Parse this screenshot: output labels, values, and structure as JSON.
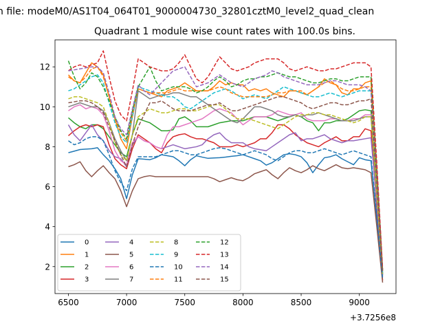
{
  "suptitle": "n file: modeM0/AS1T04_064T01_9000004730_32801cztM0_level2_quad_clean",
  "chart_data": {
    "type": "line",
    "title": "Quadrant 1 module wise count rates with 100.0s bins.",
    "xlabel": "",
    "ylabel": "",
    "x_offset_label": "+3.7256e8",
    "xlim": [
      6385,
      9315
    ],
    "ylim": [
      0.65,
      13.35
    ],
    "xticks": [
      6500,
      7000,
      7500,
      8000,
      8500,
      9000
    ],
    "yticks": [
      2,
      4,
      6,
      8,
      10,
      12
    ],
    "grid": false,
    "legend_position": "lower-left",
    "x": [
      6500,
      6550,
      6600,
      6650,
      6700,
      6750,
      6800,
      6850,
      6900,
      6950,
      7000,
      7050,
      7100,
      7150,
      7200,
      7250,
      7300,
      7350,
      7400,
      7450,
      7500,
      7550,
      7600,
      7650,
      7700,
      7750,
      7800,
      7850,
      7900,
      7950,
      8000,
      8050,
      8100,
      8150,
      8200,
      8250,
      8300,
      8350,
      8400,
      8450,
      8500,
      8550,
      8600,
      8650,
      8700,
      8750,
      8800,
      8850,
      8900,
      8950,
      9000,
      9050,
      9100,
      9150,
      9200
    ],
    "series": [
      {
        "name": "0",
        "color": "#1f77b4",
        "dash": "solid",
        "values": [
          7.7,
          7.78,
          7.86,
          7.88,
          7.9,
          7.95,
          7.6,
          7.3,
          6.9,
          6.4,
          5.4,
          6.6,
          7.4,
          7.38,
          7.35,
          7.45,
          7.6,
          7.55,
          7.5,
          7.3,
          7.05,
          7.35,
          7.55,
          7.48,
          7.42,
          7.44,
          7.45,
          7.48,
          7.52,
          7.55,
          7.6,
          7.5,
          7.4,
          7.3,
          7.08,
          7.2,
          7.4,
          7.6,
          7.65,
          7.6,
          7.5,
          7.2,
          6.7,
          7.1,
          7.45,
          7.5,
          7.6,
          7.4,
          7.25,
          7.1,
          7.45,
          7.35,
          7.3,
          4.4,
          1.6
        ]
      },
      {
        "name": "1",
        "color": "#ff7f0e",
        "dash": "solid",
        "values": [
          11.6,
          11.3,
          11.2,
          11.7,
          12.2,
          12.0,
          11.6,
          10.5,
          9.4,
          8.4,
          7.9,
          9.5,
          10.9,
          10.8,
          10.7,
          10.6,
          10.5,
          10.8,
          10.9,
          11.0,
          11.2,
          11.0,
          10.8,
          10.8,
          10.8,
          11.0,
          11.3,
          11.1,
          11.2,
          11.1,
          11.1,
          10.8,
          10.9,
          10.8,
          10.9,
          10.7,
          10.6,
          10.5,
          10.8,
          10.8,
          10.7,
          10.6,
          10.8,
          11.0,
          11.4,
          11.2,
          11.1,
          10.7,
          10.6,
          10.9,
          10.9,
          11.2,
          11.3,
          6.8,
          1.8
        ]
      },
      {
        "name": "2",
        "color": "#2ca02c",
        "dash": "solid",
        "values": [
          9.45,
          9.2,
          9.0,
          8.9,
          9.1,
          9.1,
          8.9,
          8.5,
          8.1,
          7.7,
          7.5,
          8.6,
          9.4,
          9.3,
          9.2,
          9.0,
          8.8,
          8.8,
          8.85,
          9.4,
          9.5,
          9.3,
          9.0,
          9.0,
          9.0,
          9.1,
          9.2,
          9.25,
          9.3,
          9.3,
          9.3,
          9.4,
          9.5,
          9.5,
          9.5,
          9.4,
          9.3,
          9.4,
          9.5,
          9.6,
          9.5,
          9.3,
          9.2,
          8.8,
          9.2,
          9.2,
          9.3,
          9.3,
          9.4,
          9.6,
          9.8,
          9.85,
          9.8,
          5.9,
          1.6
        ]
      },
      {
        "name": "3",
        "color": "#d62728",
        "dash": "solid",
        "values": [
          8.55,
          8.8,
          9.0,
          9.1,
          9.0,
          9.1,
          9.0,
          8.1,
          7.4,
          7.1,
          6.9,
          7.9,
          8.6,
          8.4,
          8.2,
          7.9,
          7.7,
          8.2,
          8.5,
          8.6,
          8.65,
          8.5,
          8.4,
          8.4,
          8.3,
          8.2,
          8.0,
          8.0,
          8.0,
          8.1,
          8.0,
          8.1,
          8.2,
          8.4,
          8.4,
          8.7,
          9.1,
          9.1,
          8.9,
          8.6,
          8.4,
          8.2,
          8.1,
          8.0,
          8.2,
          8.35,
          8.5,
          8.3,
          8.3,
          8.5,
          8.5,
          8.9,
          8.8,
          5.0,
          1.3
        ]
      },
      {
        "name": "4",
        "color": "#9467bd",
        "dash": "solid",
        "values": [
          9.1,
          8.6,
          8.3,
          8.7,
          9.1,
          8.6,
          8.3,
          7.8,
          7.5,
          7.4,
          7.0,
          8.1,
          8.5,
          8.3,
          8.2,
          8.0,
          7.9,
          8.0,
          8.1,
          8.0,
          7.9,
          7.95,
          8.0,
          8.1,
          8.4,
          8.6,
          8.7,
          8.4,
          8.2,
          8.2,
          8.2,
          8.0,
          7.9,
          7.85,
          7.8,
          8.0,
          8.2,
          8.4,
          8.6,
          8.7,
          8.3,
          8.4,
          8.4,
          8.5,
          8.6,
          8.4,
          8.3,
          8.2,
          8.3,
          8.3,
          8.35,
          8.4,
          8.45,
          5.2,
          1.5
        ]
      },
      {
        "name": "5",
        "color": "#8c564b",
        "dash": "solid",
        "values": [
          7.0,
          7.1,
          7.25,
          6.8,
          6.5,
          6.8,
          7.05,
          6.7,
          6.4,
          5.8,
          5.0,
          5.8,
          6.4,
          6.5,
          6.55,
          6.5,
          6.5,
          6.5,
          6.5,
          6.5,
          6.5,
          6.5,
          6.5,
          6.5,
          6.5,
          6.4,
          6.25,
          6.35,
          6.45,
          6.35,
          6.3,
          6.45,
          6.65,
          6.75,
          6.85,
          6.6,
          6.4,
          6.7,
          6.95,
          6.8,
          6.7,
          6.85,
          7.05,
          6.9,
          6.8,
          6.95,
          7.1,
          6.95,
          6.9,
          6.95,
          6.9,
          6.85,
          6.7,
          4.0,
          1.2
        ]
      },
      {
        "name": "6",
        "color": "#e377c2",
        "dash": "solid",
        "values": [
          9.8,
          10.0,
          10.1,
          9.9,
          10.0,
          9.9,
          9.6,
          8.8,
          7.8,
          7.3,
          7.1,
          8.2,
          8.5,
          8.3,
          8.2,
          8.0,
          7.9,
          8.6,
          9.0,
          9.0,
          9.1,
          9.2,
          9.3,
          9.4,
          9.6,
          9.8,
          9.9,
          9.8,
          9.7,
          9.4,
          9.1,
          9.3,
          9.5,
          9.5,
          9.5,
          9.6,
          9.8,
          9.7,
          9.6,
          9.6,
          9.7,
          9.4,
          9.3,
          9.3,
          9.3,
          9.4,
          9.4,
          9.3,
          9.3,
          9.4,
          9.4,
          9.6,
          9.6,
          5.6,
          1.6
        ]
      },
      {
        "name": "7",
        "color": "#7f7f7f",
        "dash": "solid",
        "values": [
          10.0,
          10.1,
          10.2,
          10.1,
          10.0,
          10.0,
          9.8,
          9.2,
          8.4,
          7.8,
          7.3,
          8.6,
          10.8,
          10.6,
          10.4,
          10.5,
          10.6,
          10.6,
          10.7,
          10.7,
          10.6,
          10.5,
          10.5,
          10.3,
          10.1,
          9.9,
          9.7,
          9.5,
          9.3,
          9.2,
          9.4,
          9.7,
          10.0,
          10.0,
          9.9,
          9.8,
          9.6,
          9.5,
          9.5,
          9.6,
          9.5,
          9.6,
          9.6,
          9.7,
          9.6,
          9.5,
          9.4,
          9.3,
          9.3,
          9.3,
          9.4,
          9.5,
          9.5,
          5.7,
          1.7
        ]
      },
      {
        "name": "8",
        "color": "#bcbd22",
        "dash": "dashed",
        "values": [
          10.4,
          10.5,
          10.5,
          10.4,
          10.3,
          10.2,
          10.0,
          9.2,
          8.2,
          7.6,
          7.3,
          8.6,
          9.5,
          9.7,
          9.9,
          9.8,
          9.7,
          9.7,
          9.8,
          9.9,
          9.9,
          9.8,
          9.8,
          9.9,
          10.0,
          10.1,
          10.1,
          9.9,
          9.6,
          9.4,
          9.4,
          9.4,
          9.3,
          9.2,
          9.1,
          9.0,
          8.9,
          9.1,
          9.3,
          9.5,
          9.6,
          9.6,
          9.7,
          9.7,
          9.6,
          9.6,
          9.5,
          9.4,
          9.3,
          9.2,
          9.3,
          9.5,
          9.5,
          5.6,
          1.6
        ]
      },
      {
        "name": "9",
        "color": "#17becf",
        "dash": "dashed",
        "values": [
          10.8,
          10.9,
          11.1,
          11.3,
          11.5,
          11.6,
          11.2,
          10.2,
          9.2,
          8.5,
          8.2,
          9.5,
          11.0,
          10.9,
          10.8,
          10.7,
          10.6,
          10.5,
          10.5,
          10.3,
          10.0,
          9.9,
          10.1,
          10.3,
          10.5,
          10.7,
          10.8,
          10.9,
          10.8,
          10.6,
          10.4,
          10.5,
          10.6,
          10.5,
          10.4,
          10.6,
          10.8,
          11.0,
          10.9,
          10.8,
          10.7,
          10.6,
          10.5,
          10.5,
          10.6,
          10.7,
          10.6,
          10.5,
          10.6,
          10.7,
          10.8,
          10.8,
          10.8,
          6.4,
          1.7
        ]
      },
      {
        "name": "10",
        "color": "#1f77b4",
        "dash": "dashed",
        "values": [
          8.3,
          8.1,
          8.2,
          8.4,
          8.5,
          8.5,
          8.3,
          7.6,
          6.8,
          6.2,
          5.8,
          6.9,
          7.5,
          7.5,
          7.5,
          7.5,
          7.6,
          7.7,
          7.8,
          7.8,
          7.7,
          7.6,
          7.6,
          7.7,
          7.8,
          7.9,
          7.95,
          7.9,
          7.8,
          7.7,
          7.6,
          7.7,
          7.8,
          7.7,
          7.6,
          7.4,
          7.3,
          7.5,
          7.7,
          7.8,
          7.8,
          7.7,
          7.7,
          7.8,
          7.9,
          7.8,
          7.7,
          7.6,
          7.7,
          7.8,
          7.7,
          7.6,
          7.5,
          4.5,
          1.4
        ]
      },
      {
        "name": "11",
        "color": "#ff7f0e",
        "dash": "dashed",
        "values": [
          11.5,
          11.3,
          11.2,
          11.5,
          11.9,
          12.0,
          11.5,
          10.5,
          9.4,
          8.7,
          8.3,
          9.7,
          10.9,
          10.8,
          10.7,
          10.7,
          10.7,
          10.7,
          10.8,
          10.9,
          10.8,
          10.8,
          10.8,
          10.8,
          10.8,
          10.9,
          11.0,
          10.9,
          10.7,
          10.6,
          10.5,
          10.5,
          10.5,
          10.5,
          10.5,
          10.6,
          10.7,
          10.7,
          10.8,
          10.8,
          10.8,
          10.6,
          10.8,
          11.0,
          11.2,
          11.3,
          11.1,
          10.9,
          10.8,
          10.8,
          10.9,
          11.0,
          11.0,
          6.6,
          1.8
        ]
      },
      {
        "name": "12",
        "color": "#2ca02c",
        "dash": "dashed",
        "values": [
          12.3,
          11.5,
          10.9,
          11.2,
          11.7,
          11.5,
          11.0,
          10.3,
          9.5,
          8.8,
          8.4,
          9.8,
          11.0,
          11.5,
          12.0,
          11.3,
          10.8,
          10.9,
          11.0,
          11.0,
          11.0,
          10.9,
          10.7,
          10.8,
          11.0,
          11.3,
          11.5,
          11.3,
          11.0,
          11.1,
          11.3,
          11.4,
          11.4,
          11.5,
          11.5,
          11.6,
          11.7,
          11.6,
          11.5,
          11.5,
          11.4,
          11.3,
          11.2,
          11.2,
          11.3,
          11.4,
          11.4,
          11.3,
          11.3,
          11.4,
          11.5,
          11.5,
          11.5,
          6.9,
          1.8
        ]
      },
      {
        "name": "13",
        "color": "#d62728",
        "dash": "dashed",
        "values": [
          11.8,
          12.0,
          12.1,
          12.0,
          12.1,
          12.2,
          12.8,
          11.5,
          10.3,
          9.6,
          9.3,
          10.8,
          12.4,
          12.2,
          12.0,
          11.9,
          11.8,
          11.8,
          11.9,
          12.2,
          12.6,
          12.0,
          11.4,
          11.2,
          11.5,
          12.0,
          12.5,
          12.2,
          11.9,
          11.8,
          11.9,
          12.0,
          12.2,
          12.3,
          12.4,
          12.4,
          12.4,
          12.2,
          11.9,
          11.8,
          11.9,
          12.0,
          11.9,
          11.8,
          11.8,
          11.9,
          11.9,
          12.0,
          12.1,
          12.2,
          12.2,
          12.2,
          12.0,
          7.2,
          1.9
        ]
      },
      {
        "name": "14",
        "color": "#9467bd",
        "dash": "dashed",
        "values": [
          11.8,
          11.85,
          11.9,
          11.95,
          12.0,
          12.0,
          11.7,
          10.7,
          9.5,
          8.9,
          8.6,
          9.9,
          11.1,
          10.8,
          10.6,
          10.9,
          11.2,
          11.5,
          11.8,
          11.9,
          12.0,
          11.5,
          11.0,
          11.1,
          11.2,
          11.4,
          11.6,
          11.4,
          11.2,
          11.1,
          11.0,
          11.2,
          11.4,
          11.5,
          11.6,
          11.8,
          11.7,
          11.5,
          11.4,
          11.3,
          11.2,
          11.1,
          11.1,
          11.1,
          11.2,
          11.3,
          11.3,
          11.2,
          11.1,
          11.1,
          11.1,
          11.0,
          10.8,
          6.5,
          1.7
        ]
      },
      {
        "name": "15",
        "color": "#8c564b",
        "dash": "dashed",
        "values": [
          10.2,
          10.25,
          10.3,
          10.3,
          10.2,
          10.0,
          9.7,
          9.0,
          8.3,
          7.6,
          7.0,
          8.1,
          9.0,
          9.6,
          10.2,
          10.2,
          10.3,
          10.1,
          9.9,
          9.8,
          9.8,
          9.8,
          9.9,
          10.0,
          10.1,
          10.1,
          10.2,
          10.0,
          9.8,
          9.8,
          9.9,
          10.0,
          10.1,
          10.2,
          10.3,
          10.4,
          10.5,
          10.5,
          10.4,
          10.3,
          10.2,
          10.0,
          9.9,
          10.0,
          10.1,
          10.2,
          10.2,
          10.1,
          10.1,
          10.2,
          10.3,
          10.3,
          10.4,
          6.3,
          1.7
        ]
      }
    ]
  }
}
